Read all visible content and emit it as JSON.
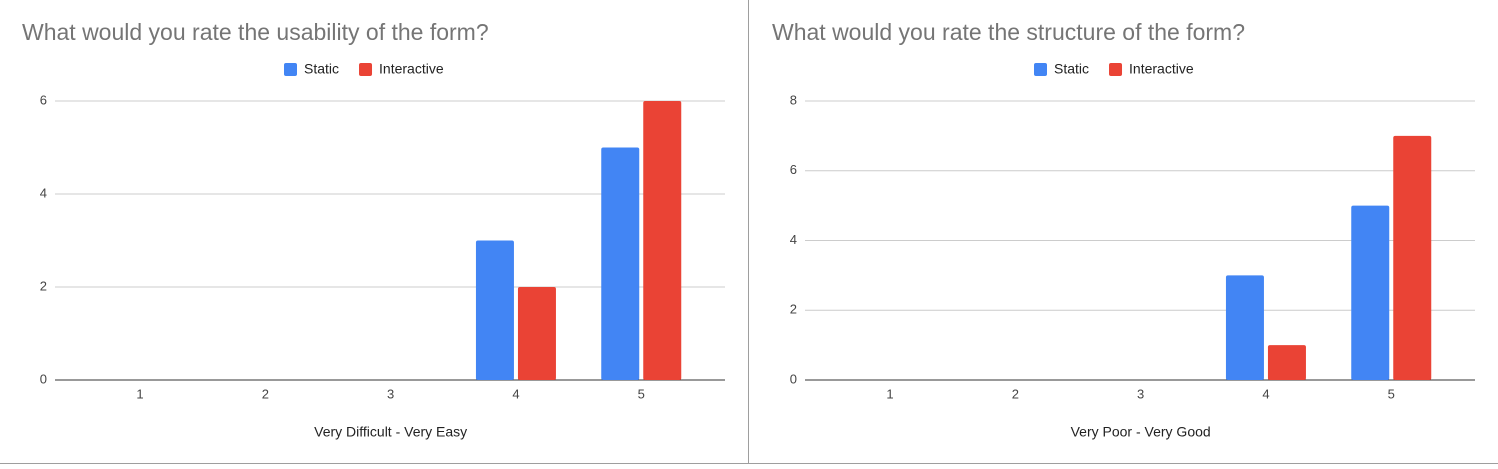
{
  "chart_data": [
    {
      "type": "bar",
      "title": "What would you rate the usability of the form?",
      "x_label": "Very Difficult - Very Easy",
      "categories": [
        "1",
        "2",
        "3",
        "4",
        "5"
      ],
      "series": [
        {
          "name": "Static",
          "color": "#4285f4",
          "values": [
            0,
            0,
            0,
            3,
            5
          ]
        },
        {
          "name": "Interactive",
          "color": "#ea4335",
          "values": [
            0,
            0,
            0,
            2,
            6
          ]
        }
      ],
      "ylim": [
        0,
        6
      ],
      "yticks": [
        0,
        2,
        4,
        6
      ],
      "grid": true,
      "legend": "top"
    },
    {
      "type": "bar",
      "title": "What would you rate the structure of the form?",
      "x_label": "Very Poor - Very Good",
      "categories": [
        "1",
        "2",
        "3",
        "4",
        "5"
      ],
      "series": [
        {
          "name": "Static",
          "color": "#4285f4",
          "values": [
            0,
            0,
            0,
            3,
            5
          ]
        },
        {
          "name": "Interactive",
          "color": "#ea4335",
          "values": [
            0,
            0,
            0,
            1,
            7
          ]
        }
      ],
      "ylim": [
        0,
        8
      ],
      "yticks": [
        0,
        2,
        4,
        6,
        8
      ],
      "grid": true,
      "legend": "top"
    }
  ]
}
